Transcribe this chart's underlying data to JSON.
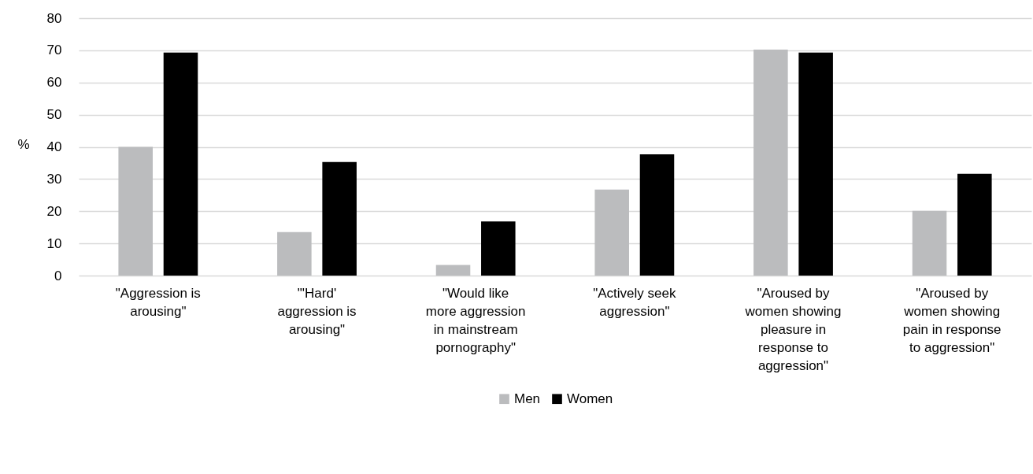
{
  "chart_data": {
    "type": "bar",
    "ylabel": "%",
    "categories": [
      "\"Aggression is arousing\"",
      "\"'Hard' aggression is arousing\"",
      "\"Would like more aggression in mainstream pornography\"",
      "\"Actively seek aggression\"",
      "\"Aroused by women showing pleasure in response to aggression\"",
      "\"Aroused by women showing pain in response to aggression\""
    ],
    "series": [
      {
        "name": "Men",
        "color": "#bbbcbe",
        "values": [
          40,
          13.5,
          3.3,
          26.7,
          70.2,
          20.1
        ]
      },
      {
        "name": "Women",
        "color": "#000000",
        "values": [
          69.3,
          35.3,
          16.8,
          37.7,
          69.3,
          31.6
        ]
      }
    ],
    "ylim": [
      0,
      80
    ],
    "yticks": [
      0,
      10,
      20,
      30,
      40,
      50,
      60,
      70,
      80
    ],
    "grid": "y",
    "legend": "bottom"
  }
}
